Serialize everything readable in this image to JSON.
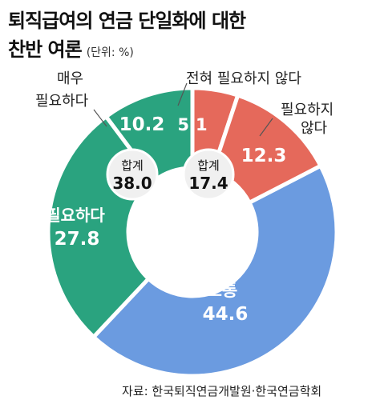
{
  "header": {
    "title_line1": "퇴직급여의 연금 단일화에 대한",
    "title_line2": "찬반 여론",
    "unit": "(단위: %)"
  },
  "source": "자료: 한국퇴직연금개발원·한국연금학회",
  "colors": {
    "neutral": "#6b9be0",
    "oppose": "#e5695b",
    "support": "#2aa37f",
    "total_circle": "#f0f0f0"
  },
  "chart_data": {
    "type": "donut",
    "title": "퇴직급여의 연금 단일화에 대한 찬반 여론",
    "unit": "%",
    "slices": [
      {
        "name": "보통",
        "value": 44.6
      },
      {
        "name": "필요하다",
        "value": 27.8
      },
      {
        "name": "매우 필요하다",
        "value": 10.2
      },
      {
        "name": "전혀 필요하지 않다",
        "value": 5.1
      },
      {
        "name": "필요하지 않다",
        "value": 12.3
      }
    ],
    "totals": [
      {
        "label": "합계",
        "value": "38.0"
      },
      {
        "label": "합계",
        "value": "17.4"
      }
    ]
  }
}
